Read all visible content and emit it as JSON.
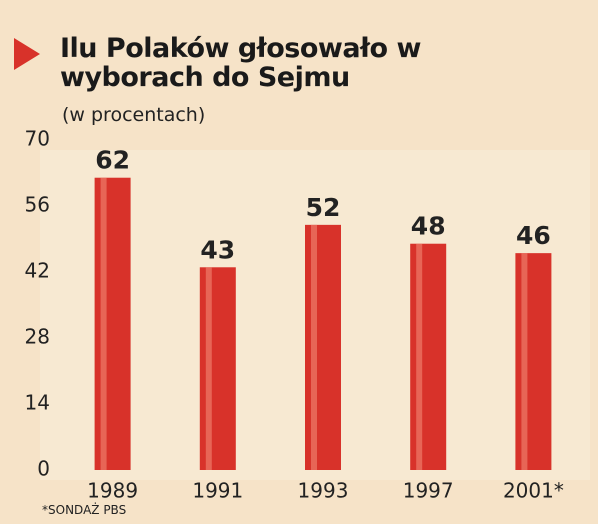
{
  "chart_data": {
    "type": "bar",
    "title": "Ilu Polaków głosowało w wyborach do Sejmu",
    "subtitle": "(w procentach)",
    "categories": [
      "1989",
      "1991",
      "1993",
      "1997",
      "2001*"
    ],
    "values": [
      62,
      43,
      52,
      48,
      46
    ],
    "color": "#d8322a",
    "ylim": [
      0,
      70
    ],
    "yticks": [
      0,
      14,
      28,
      42,
      56,
      70
    ],
    "note": "*SONDAŻ PBS"
  }
}
